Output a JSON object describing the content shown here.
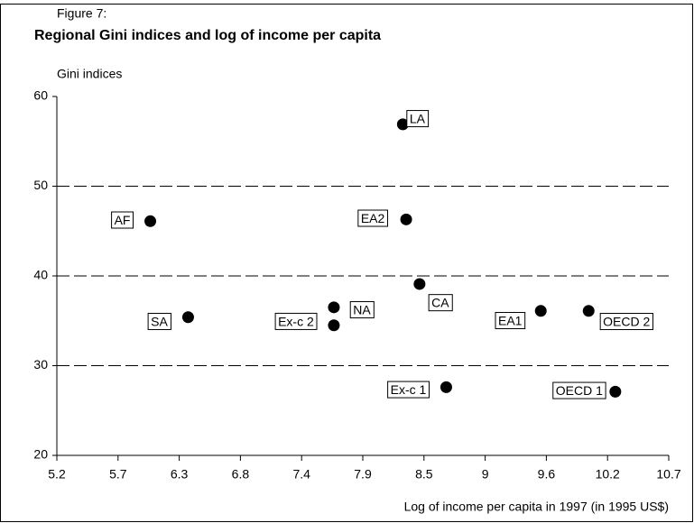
{
  "chart_data": {
    "type": "scatter",
    "figure_label": "Figure 7:",
    "title": "Regional Gini indices and log of income per capita",
    "y_axis_label": "Gini indices",
    "x_axis_label": "Log of income per capita in 1997 (in 1995 US$)",
    "color": "#000000",
    "grid": true,
    "point_labels": [
      "AF",
      "SA",
      "NA",
      "Ex-c 2",
      "LA",
      "EA2",
      "CA",
      "Ex-c 1",
      "EA1",
      "OECD 2",
      "OECD 1"
    ],
    "x": [
      6.04,
      6.38,
      7.69,
      7.69,
      8.31,
      8.34,
      8.46,
      8.7,
      9.55,
      9.98,
      10.22
    ],
    "values": [
      46.1,
      35.4,
      36.5,
      34.5,
      56.9,
      46.3,
      39.1,
      27.6,
      36.1,
      36.1,
      27.1
    ],
    "xlim": [
      5.2,
      10.7
    ],
    "ylim": [
      20,
      60
    ],
    "xticks": [
      5.2,
      {
        "value": 5.75,
        "label": "5.7"
      },
      6.3,
      {
        "value": 6.85,
        "label": "6.8"
      },
      7.4,
      {
        "value": 7.95,
        "label": "7.9"
      },
      8.5,
      {
        "value": 9.05,
        "label": "9"
      },
      9.6,
      {
        "value": 10.15,
        "label": "10.2"
      },
      10.7
    ],
    "yticks": [
      20,
      30,
      40,
      50,
      60
    ]
  }
}
